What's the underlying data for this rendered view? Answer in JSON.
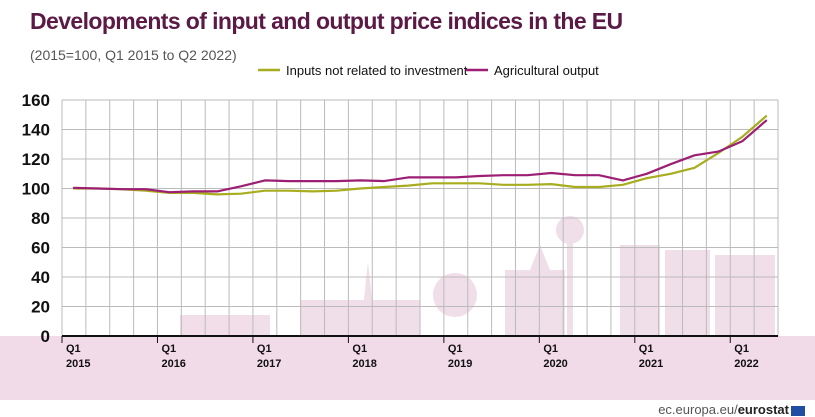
{
  "header": {
    "title": "Developments of input and output price indices in the EU",
    "subtitle": "(2015=100, Q1 2015 to Q2 2022)"
  },
  "footer": {
    "source_site": "ec.europa.eu/",
    "source_brand": "eurostat"
  },
  "colors": {
    "inputs": "#a8ad1f",
    "output": "#9c1f74",
    "title": "#5b1a45",
    "band": "#f2dbe9",
    "grid": "#bbbbbb"
  },
  "chart_data": {
    "type": "line",
    "title": "Developments of input and output price indices in the EU",
    "subtitle": "(2015=100, Q1 2015 to Q2 2022)",
    "x": [
      "Q1 2015",
      "Q2 2015",
      "Q3 2015",
      "Q4 2015",
      "Q1 2016",
      "Q2 2016",
      "Q3 2016",
      "Q4 2016",
      "Q1 2017",
      "Q2 2017",
      "Q3 2017",
      "Q4 2017",
      "Q1 2018",
      "Q2 2018",
      "Q3 2018",
      "Q4 2018",
      "Q1 2019",
      "Q2 2019",
      "Q3 2019",
      "Q4 2019",
      "Q1 2020",
      "Q2 2020",
      "Q3 2020",
      "Q4 2020",
      "Q1 2021",
      "Q2 2021",
      "Q3 2021",
      "Q4 2021",
      "Q1 2022",
      "Q2 2022"
    ],
    "x_tick_labels": [
      {
        "quarter": "Q1",
        "year": "2015"
      },
      {
        "quarter": "Q1",
        "year": "2016"
      },
      {
        "quarter": "Q1",
        "year": "2017"
      },
      {
        "quarter": "Q1",
        "year": "2018"
      },
      {
        "quarter": "Q1",
        "year": "2019"
      },
      {
        "quarter": "Q1",
        "year": "2020"
      },
      {
        "quarter": "Q1",
        "year": "2021"
      },
      {
        "quarter": "Q1",
        "year": "2022"
      }
    ],
    "yticks": [
      "160",
      "140",
      "120",
      "100",
      "80",
      "60",
      "40",
      "20",
      "0"
    ],
    "ylim": [
      0,
      160
    ],
    "grid": true,
    "legend_position": "top-right",
    "series": [
      {
        "name": "Inputs not related to investment",
        "color": "#a8ad1f",
        "values": [
          100,
          100,
          99.5,
          98.5,
          97,
          97,
          96,
          96.5,
          98.5,
          98.5,
          98,
          98.5,
          100,
          101,
          102,
          103.5,
          103.5,
          103.5,
          102.5,
          102.5,
          103,
          101,
          101,
          102.5,
          107,
          110,
          114,
          124,
          135,
          149
        ]
      },
      {
        "name": "Agricultural output",
        "color": "#9c1f74",
        "values": [
          100.5,
          100,
          99.5,
          99.5,
          97.5,
          98,
          98,
          101.5,
          105.5,
          105,
          105,
          105,
          105.5,
          105,
          107.5,
          107.5,
          107.5,
          108.5,
          109,
          109,
          110.5,
          109,
          109,
          105.5,
          110,
          116.5,
          122.5,
          125,
          132,
          146
        ]
      }
    ]
  }
}
